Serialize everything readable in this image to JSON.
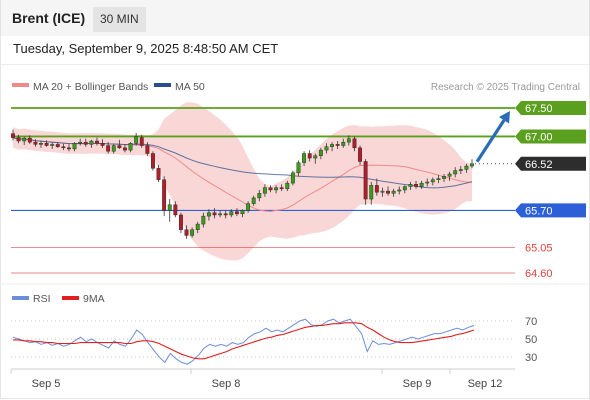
{
  "header": {
    "instrument": "Brent (ICE)",
    "timeframe": "30 MIN",
    "timestamp": "Tuesday, September 9, 2025 8:48:50 AM CET"
  },
  "legend": {
    "ma20": {
      "label": "MA 20 + Bollinger Bands",
      "color": "#f08a8a"
    },
    "ma50": {
      "label": "MA 50",
      "color": "#2b4f8e"
    },
    "credit": "Research © 2025 Trading Central"
  },
  "rsi_legend": {
    "rsi": {
      "label": "RSI",
      "color": "#6a8fd8"
    },
    "ma9": {
      "label": "9MA",
      "color": "#e02020"
    }
  },
  "chart_data": [
    {
      "type": "candlestick",
      "title": "Brent (ICE)",
      "timeframe": "30 MIN",
      "ylim": [
        64.4,
        67.7
      ],
      "current_price": 66.52,
      "levels": [
        {
          "value": 67.5,
          "label": "67.50",
          "kind": "resistance",
          "color": "#5aa01e"
        },
        {
          "value": 67.0,
          "label": "67.00",
          "kind": "resistance",
          "color": "#5aa01e"
        },
        {
          "value": 66.52,
          "label": "66.52",
          "kind": "last",
          "color": "#2d2d2d"
        },
        {
          "value": 65.7,
          "label": "65.70",
          "kind": "pivot",
          "color": "#2d5fd6"
        },
        {
          "value": 65.05,
          "label": "65.05",
          "kind": "support",
          "color": "#e04040"
        },
        {
          "value": 64.6,
          "label": "64.60",
          "kind": "support",
          "color": "#e04040"
        }
      ],
      "x_ticks": [
        "Sep 5",
        "Sep 8",
        "Sep 9",
        "Sep 12"
      ],
      "projection": {
        "from": 66.52,
        "to": 67.5
      },
      "candles": [
        [
          67.05,
          67.12,
          66.93,
          66.98
        ],
        [
          66.98,
          67.03,
          66.88,
          66.92
        ],
        [
          66.92,
          67.0,
          66.85,
          66.97
        ],
        [
          66.97,
          67.02,
          66.87,
          66.9
        ],
        [
          66.9,
          66.95,
          66.82,
          66.86
        ],
        [
          66.86,
          66.92,
          66.8,
          66.88
        ],
        [
          66.88,
          66.93,
          66.82,
          66.84
        ],
        [
          66.84,
          66.9,
          66.78,
          66.86
        ],
        [
          66.86,
          66.9,
          66.8,
          66.82
        ],
        [
          66.82,
          66.87,
          66.76,
          66.8
        ],
        [
          66.8,
          66.86,
          66.74,
          66.78
        ],
        [
          66.78,
          66.9,
          66.74,
          66.88
        ],
        [
          66.88,
          66.96,
          66.84,
          66.9
        ],
        [
          66.9,
          66.96,
          66.82,
          66.86
        ],
        [
          66.86,
          66.94,
          66.8,
          66.92
        ],
        [
          66.92,
          66.98,
          66.84,
          66.88
        ],
        [
          66.88,
          66.95,
          66.8,
          66.84
        ],
        [
          66.84,
          66.9,
          66.7,
          66.74
        ],
        [
          66.74,
          66.86,
          66.7,
          66.84
        ],
        [
          66.84,
          66.94,
          66.78,
          66.8
        ],
        [
          66.8,
          66.86,
          66.72,
          66.76
        ],
        [
          66.76,
          66.9,
          66.72,
          66.88
        ],
        [
          66.88,
          67.06,
          66.84,
          67.0
        ],
        [
          66.98,
          67.03,
          66.8,
          66.84
        ],
        [
          66.84,
          66.9,
          66.66,
          66.7
        ],
        [
          66.7,
          66.74,
          66.4,
          66.44
        ],
        [
          66.44,
          66.5,
          66.2,
          66.24
        ],
        [
          66.24,
          66.3,
          65.6,
          65.7
        ],
        [
          65.7,
          65.9,
          65.5,
          65.8
        ],
        [
          65.8,
          65.86,
          65.58,
          65.62
        ],
        [
          65.62,
          65.66,
          65.3,
          65.36
        ],
        [
          65.36,
          65.44,
          65.2,
          65.26
        ],
        [
          65.26,
          65.4,
          65.22,
          65.36
        ],
        [
          65.36,
          65.5,
          65.3,
          65.46
        ],
        [
          65.46,
          65.66,
          65.4,
          65.6
        ],
        [
          65.6,
          65.72,
          65.52,
          65.66
        ],
        [
          65.66,
          65.74,
          65.56,
          65.62
        ],
        [
          65.62,
          65.7,
          65.58,
          65.64
        ],
        [
          65.64,
          65.7,
          65.56,
          65.62
        ],
        [
          65.62,
          65.72,
          65.58,
          65.68
        ],
        [
          65.68,
          65.74,
          65.6,
          65.64
        ],
        [
          65.64,
          65.72,
          65.58,
          65.7
        ],
        [
          65.7,
          65.86,
          65.66,
          65.82
        ],
        [
          65.82,
          65.96,
          65.78,
          65.92
        ],
        [
          65.92,
          66.06,
          65.86,
          66.0
        ],
        [
          66.0,
          66.16,
          65.94,
          66.1
        ],
        [
          66.1,
          66.14,
          66.02,
          66.06
        ],
        [
          66.06,
          66.14,
          66.0,
          66.1
        ],
        [
          66.1,
          66.16,
          66.04,
          66.08
        ],
        [
          66.08,
          66.22,
          66.04,
          66.18
        ],
        [
          66.18,
          66.4,
          66.14,
          66.36
        ],
        [
          66.36,
          66.58,
          66.3,
          66.54
        ],
        [
          66.54,
          66.74,
          66.48,
          66.7
        ],
        [
          66.7,
          66.76,
          66.56,
          66.62
        ],
        [
          66.62,
          66.7,
          66.52,
          66.66
        ],
        [
          66.66,
          66.8,
          66.6,
          66.76
        ],
        [
          66.76,
          66.88,
          66.7,
          66.82
        ],
        [
          66.82,
          66.9,
          66.74,
          66.86
        ],
        [
          66.86,
          66.92,
          66.78,
          66.84
        ],
        [
          66.84,
          66.96,
          66.8,
          66.9
        ],
        [
          66.9,
          67.02,
          66.84,
          66.96
        ],
        [
          66.96,
          67.0,
          66.74,
          66.8
        ],
        [
          66.8,
          66.84,
          66.5,
          66.56
        ],
        [
          66.56,
          66.6,
          65.8,
          65.9
        ],
        [
          65.9,
          66.2,
          65.8,
          66.14
        ],
        [
          66.14,
          66.26,
          65.96,
          66.02
        ],
        [
          66.02,
          66.1,
          65.94,
          66.04
        ],
        [
          66.04,
          66.12,
          65.96,
          66.0
        ],
        [
          66.0,
          66.08,
          65.94,
          66.04
        ],
        [
          66.04,
          66.12,
          65.98,
          66.06
        ],
        [
          66.06,
          66.14,
          66.0,
          66.12
        ],
        [
          66.12,
          66.2,
          66.06,
          66.16
        ],
        [
          66.16,
          66.22,
          66.08,
          66.12
        ],
        [
          66.12,
          66.22,
          66.08,
          66.18
        ],
        [
          66.18,
          66.26,
          66.12,
          66.2
        ],
        [
          66.2,
          66.28,
          66.14,
          66.24
        ],
        [
          66.24,
          66.32,
          66.18,
          66.26
        ],
        [
          66.26,
          66.34,
          66.2,
          66.3
        ],
        [
          66.3,
          66.38,
          66.22,
          66.34
        ],
        [
          66.34,
          66.46,
          66.28,
          66.4
        ],
        [
          66.4,
          66.48,
          66.34,
          66.42
        ],
        [
          66.42,
          66.52,
          66.36,
          66.48
        ],
        [
          66.48,
          66.6,
          66.44,
          66.52
        ]
      ]
    },
    {
      "type": "line",
      "title": "RSI",
      "y_ticks": [
        70,
        50,
        30
      ],
      "series": [
        {
          "name": "RSI",
          "color": "#6a8fd8",
          "values": [
            52,
            50,
            48,
            46,
            47,
            44,
            46,
            43,
            45,
            42,
            44,
            48,
            52,
            47,
            50,
            46,
            43,
            40,
            48,
            44,
            42,
            50,
            60,
            55,
            46,
            38,
            30,
            24,
            34,
            28,
            24,
            22,
            26,
            32,
            40,
            44,
            42,
            44,
            42,
            46,
            44,
            46,
            52,
            56,
            58,
            62,
            58,
            60,
            58,
            62,
            66,
            70,
            72,
            66,
            64,
            66,
            70,
            72,
            68,
            70,
            72,
            64,
            56,
            36,
            48,
            44,
            45,
            44,
            46,
            48,
            50,
            52,
            50,
            52,
            54,
            56,
            56,
            58,
            60,
            62,
            60,
            63,
            65
          ]
        },
        {
          "name": "9MA",
          "color": "#e02020",
          "values": [
            49,
            49,
            48,
            48,
            47,
            47,
            46,
            46,
            45,
            45,
            45,
            45,
            46,
            46,
            46,
            46,
            46,
            46,
            46,
            46,
            45,
            45,
            47,
            48,
            48,
            47,
            45,
            42,
            39,
            36,
            33,
            31,
            29,
            28,
            28,
            30,
            32,
            34,
            36,
            39,
            41,
            43,
            45,
            47,
            49,
            51,
            52,
            54,
            55,
            57,
            59,
            61,
            63,
            64,
            65,
            65,
            66,
            67,
            67,
            68,
            68,
            68,
            67,
            63,
            60,
            56,
            52,
            49,
            47,
            46,
            46,
            46,
            47,
            48,
            49,
            50,
            51,
            52,
            53,
            55,
            56,
            58,
            60
          ]
        }
      ]
    }
  ]
}
